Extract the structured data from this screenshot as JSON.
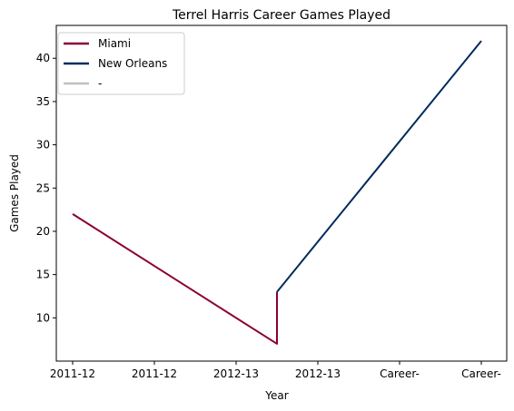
{
  "chart_data": {
    "type": "line",
    "title": "Terrel Harris Career Games Played",
    "xlabel": "Year",
    "ylabel": "Games Played",
    "x_tick_labels": [
      "2011-12",
      "2011-12",
      "2012-13",
      "2012-13",
      "Career-",
      "Career-"
    ],
    "ylim": [
      5,
      43.8
    ],
    "y_ticks": [
      10,
      15,
      20,
      25,
      30,
      35,
      40
    ],
    "grid": false,
    "legend_position": "top-left",
    "series": [
      {
        "name": "Miami",
        "color": "#8b0033",
        "x": [
          0,
          1.25,
          2.5,
          2.5
        ],
        "y": [
          22,
          14.5,
          7,
          13
        ]
      },
      {
        "name": "New Orleans",
        "color": "#002b5c",
        "x": [
          2.5,
          3.75,
          5
        ],
        "y": [
          13,
          27.5,
          42
        ]
      },
      {
        "name": "-",
        "color": "#c0c0c0",
        "x": [],
        "y": []
      }
    ]
  }
}
